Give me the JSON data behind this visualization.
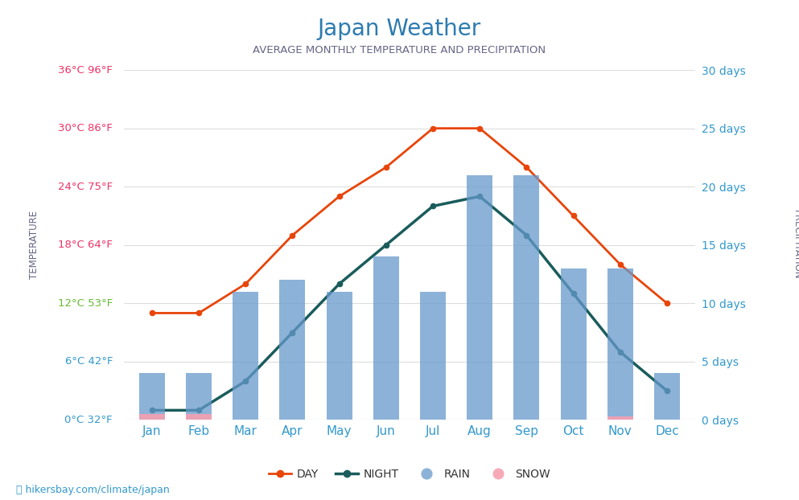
{
  "title": "Japan Weather",
  "subtitle": "AVERAGE MONTHLY TEMPERATURE AND PRECIPITATION",
  "months": [
    "Jan",
    "Feb",
    "Mar",
    "Apr",
    "May",
    "Jun",
    "Jul",
    "Aug",
    "Sep",
    "Oct",
    "Nov",
    "Dec"
  ],
  "day_temp": [
    11,
    11,
    14,
    19,
    23,
    26,
    30,
    30,
    26,
    21,
    16,
    12
  ],
  "night_temp": [
    1,
    1,
    4,
    9,
    14,
    18,
    22,
    23,
    19,
    13,
    7,
    3
  ],
  "rain_days": [
    4,
    4,
    11,
    12,
    11,
    14,
    11,
    21,
    21,
    13,
    13,
    4
  ],
  "snow_days": [
    0.5,
    0.5,
    0,
    0,
    0,
    0,
    0,
    0,
    0,
    0,
    0.3,
    0
  ],
  "temp_yticks": [
    0,
    6,
    12,
    18,
    24,
    30,
    36
  ],
  "temp_ylabels": [
    "0°C 32°F",
    "6°C 42°F",
    "12°C 53°F",
    "18°C 64°F",
    "24°C 75°F",
    "30°C 86°F",
    "36°C 96°F"
  ],
  "temp_label_colors": [
    "#3399cc",
    "#3399cc",
    "#66bb33",
    "#ee3366",
    "#ee3366",
    "#ee3366",
    "#ee3366"
  ],
  "precip_yticks": [
    0,
    5,
    10,
    15,
    20,
    25,
    30
  ],
  "precip_ylabels": [
    "0 days",
    "5 days",
    "10 days",
    "15 days",
    "20 days",
    "25 days",
    "30 days"
  ],
  "temp_ylim": [
    0,
    36
  ],
  "precip_ylim": [
    0,
    30
  ],
  "day_color": "#e8450a",
  "night_color": "#1a5c5c",
  "rain_color": "#6699cc",
  "snow_color": "#f5a0b0",
  "title_color": "#2c7bb0",
  "subtitle_color": "#666688",
  "right_label_color": "#3399cc",
  "xlabel_color": "#3399cc",
  "ylabel_color": "#666688",
  "watermark": "hikersbay.com/climate/japan",
  "background_color": "#ffffff",
  "grid_color": "#dddddd"
}
